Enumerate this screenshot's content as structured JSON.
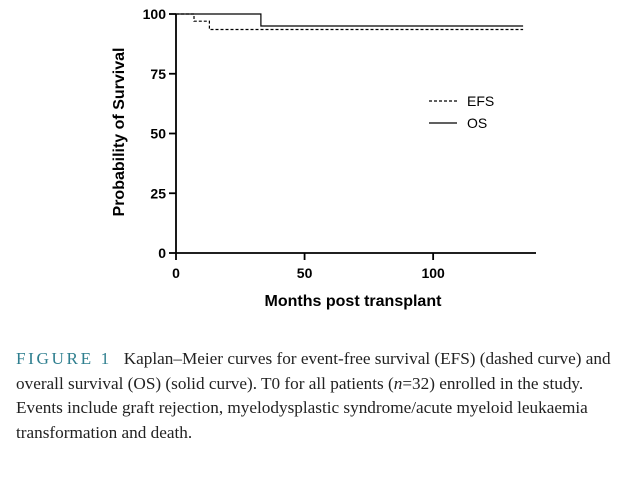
{
  "chart_data": {
    "type": "line",
    "style": "step",
    "xlabel": "Months post transplant",
    "ylabel": "Probability of Survival",
    "xlim": [
      0,
      140
    ],
    "ylim": [
      0,
      100
    ],
    "xticks": [
      0,
      50,
      100
    ],
    "yticks": [
      0,
      25,
      50,
      75,
      100
    ],
    "grid": false,
    "legend_position": "right",
    "series": [
      {
        "name": "EFS",
        "line_style": "dashed",
        "x": [
          0,
          7,
          7,
          13,
          13,
          135
        ],
        "y": [
          100,
          100,
          97,
          97,
          93.5,
          93.5
        ]
      },
      {
        "name": "OS",
        "line_style": "solid",
        "x": [
          0,
          33,
          33,
          135
        ],
        "y": [
          100,
          100,
          95,
          95
        ]
      }
    ]
  },
  "caption": {
    "label": "FIGURE 1",
    "text": "Kaplan–Meier curves for event-free survival (EFS) (dashed curve) and overall survival (OS) (solid curve). T0 for all patients (",
    "n_var": "n",
    "n_rest": "=32) enrolled in the study. Events include graft rejection, myelodysplastic syndrome/acute myeloid leukaemia transformation and death."
  }
}
